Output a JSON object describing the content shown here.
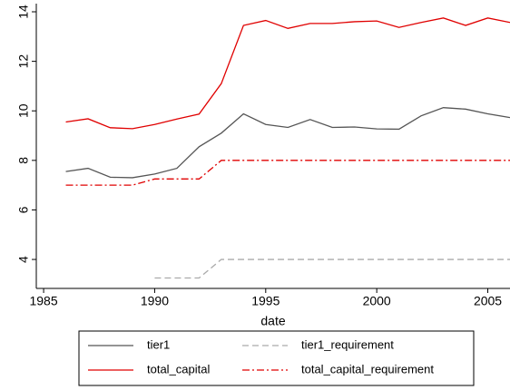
{
  "chart_data": {
    "type": "line",
    "x_label": "date",
    "x": [
      1986,
      1987,
      1988,
      1989,
      1990,
      1991,
      1992,
      1993,
      1994,
      1995,
      1996,
      1997,
      1998,
      1999,
      2000,
      2001,
      2002,
      2003,
      2004,
      2005,
      2006
    ],
    "series": [
      {
        "name": "tier1",
        "color": "#555555",
        "style": "solid",
        "values": [
          7.55,
          7.68,
          7.32,
          7.3,
          7.45,
          7.68,
          8.55,
          9.1,
          9.88,
          9.45,
          9.33,
          9.65,
          9.33,
          9.35,
          9.27,
          9.26,
          9.8,
          10.13,
          10.07,
          9.88,
          9.73
        ]
      },
      {
        "name": "tier1_requirement",
        "color": "#aaaaaa",
        "style": "dashed",
        "values": [
          null,
          null,
          null,
          null,
          3.25,
          3.25,
          3.25,
          4,
          4,
          4,
          4,
          4,
          4,
          4,
          4,
          4,
          4,
          4,
          4,
          4,
          4
        ]
      },
      {
        "name": "total_capital",
        "color": "#e00000",
        "style": "solid",
        "values": [
          9.55,
          9.68,
          9.32,
          9.28,
          9.45,
          9.67,
          9.87,
          11.1,
          13.45,
          13.65,
          13.33,
          13.53,
          13.53,
          13.6,
          13.63,
          13.37,
          13.57,
          13.75,
          13.45,
          13.75,
          13.57
        ]
      },
      {
        "name": "total_capital_requirement",
        "color": "#e00000",
        "style": "dashdot",
        "values": [
          7,
          7,
          7,
          7,
          7.25,
          7.25,
          7.25,
          8,
          8,
          8,
          8,
          8,
          8,
          8,
          8,
          8,
          8,
          8,
          8,
          8,
          8
        ]
      }
    ],
    "xlim": [
      1984.67,
      2006
    ],
    "xticks": [
      1985,
      1990,
      1995,
      2000,
      2005
    ],
    "ylim": [
      2.83,
      14.33
    ],
    "yticks": [
      4,
      6,
      8,
      10,
      12,
      14
    ],
    "grid": false,
    "legend": "bottom"
  }
}
